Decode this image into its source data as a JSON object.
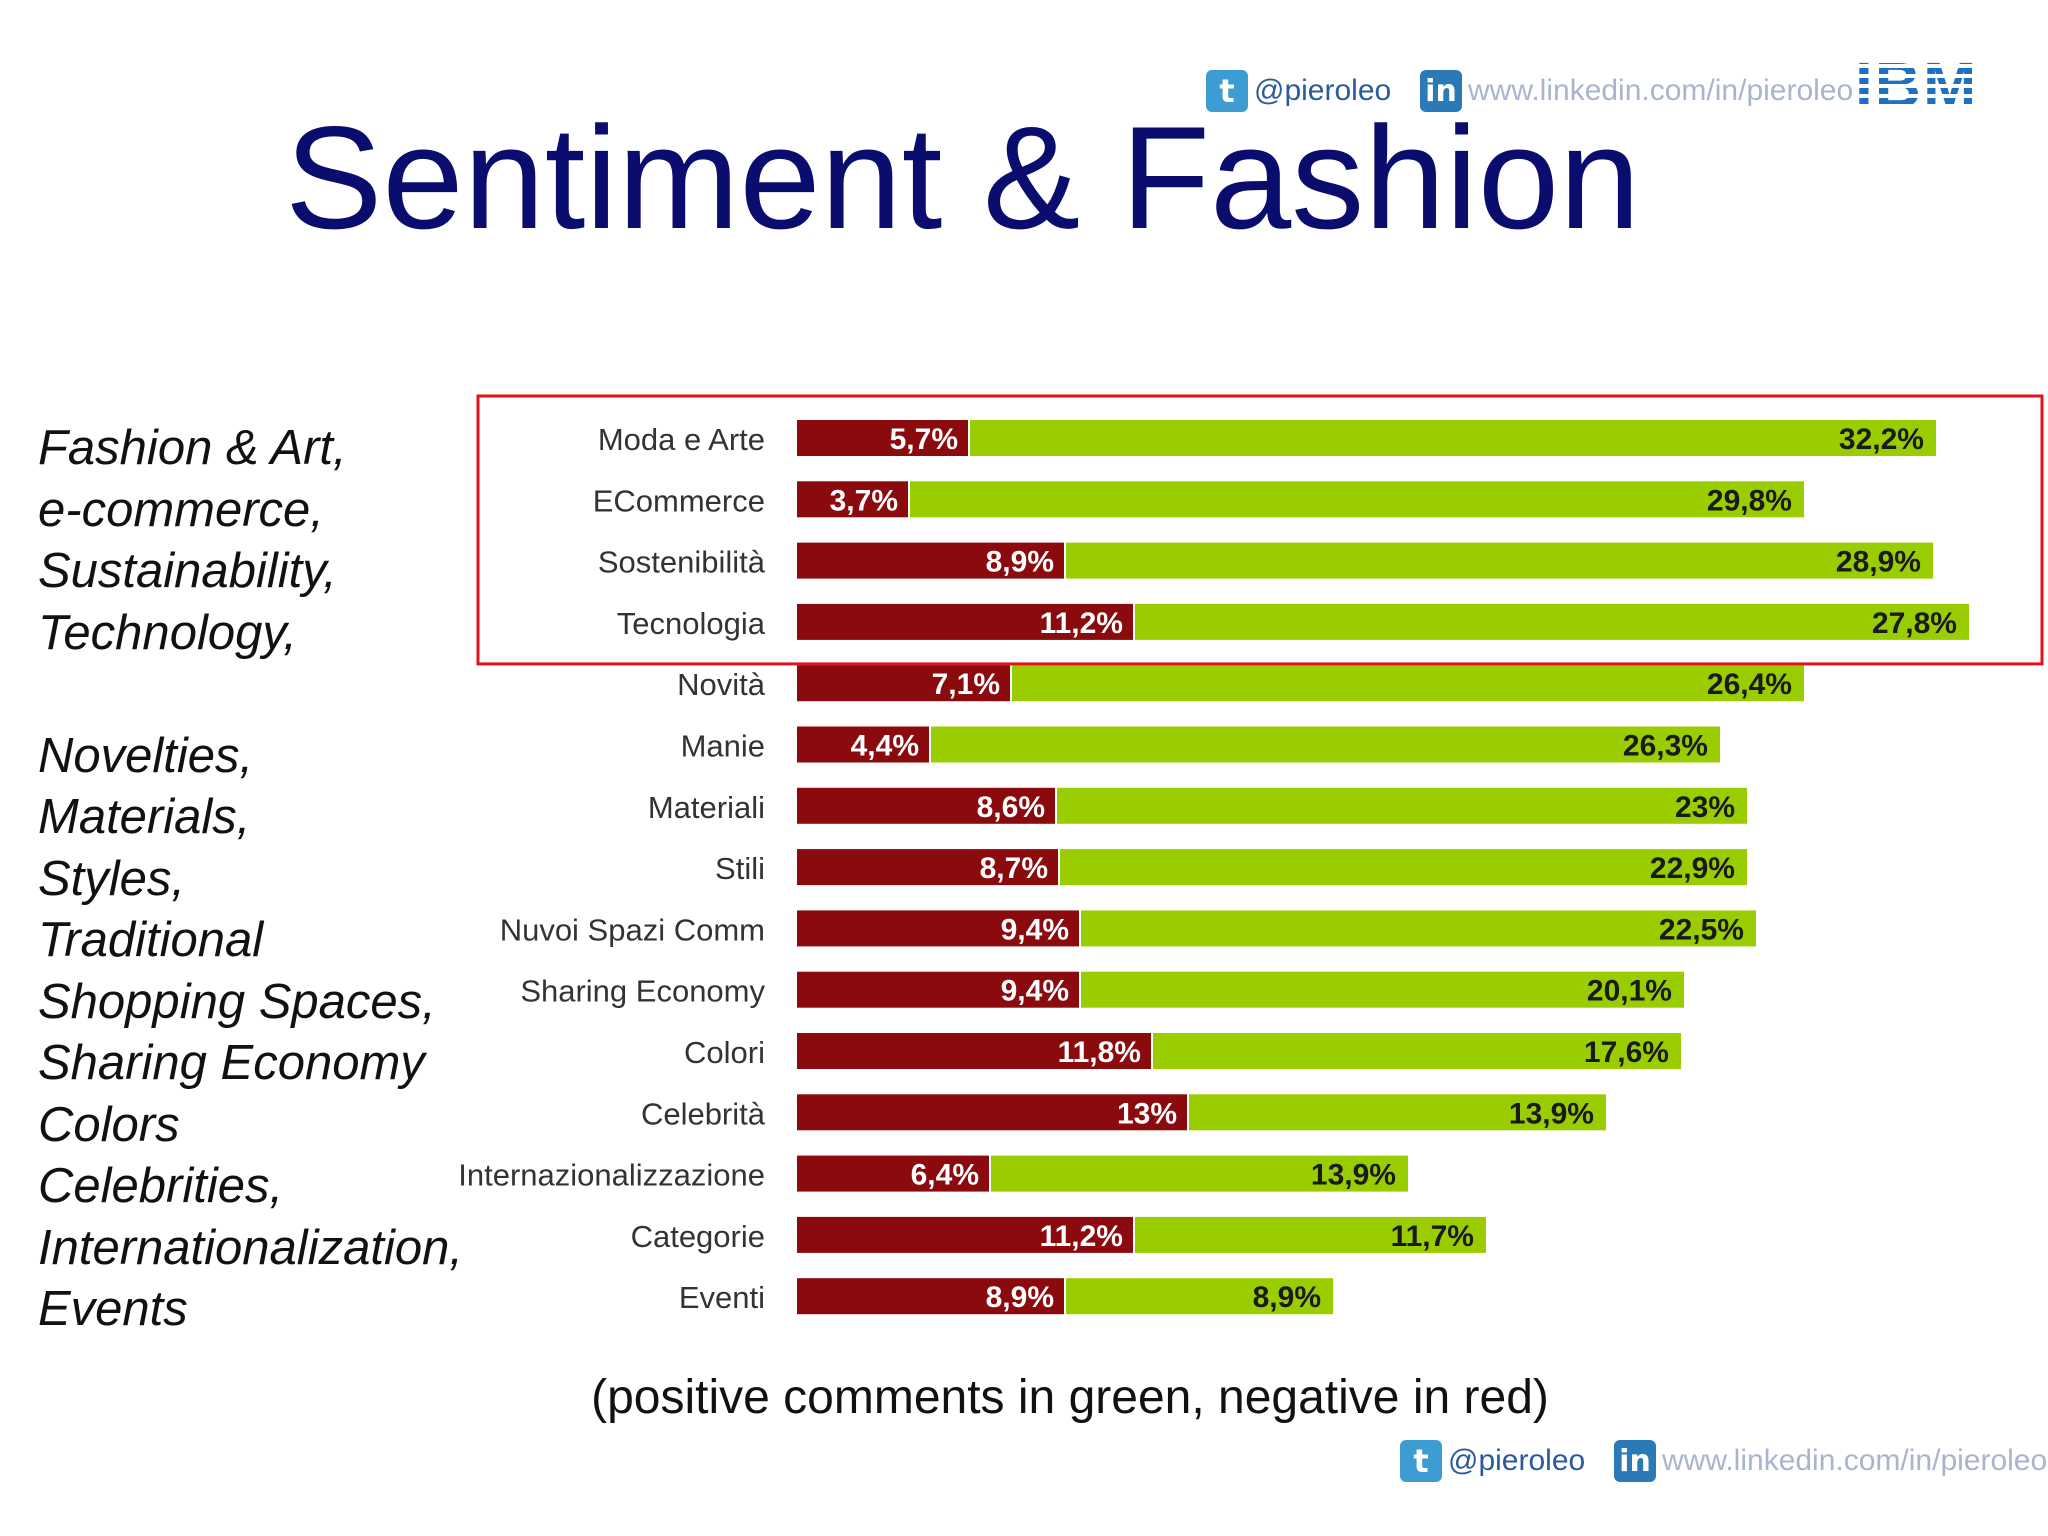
{
  "header": {
    "twitter_handle": "@pieroleo",
    "linkedin_url": "www.linkedin.com/in/pieroleo",
    "logo_text": "IBM",
    "twitter_icon": "t",
    "linkedin_icon": "in"
  },
  "title": "Sentiment & Fashion",
  "left_text": [
    "Fashion & Art,",
    "e-commerce,",
    "Sustainability,",
    "Technology,",
    "",
    "Novelties,",
    "Materials,",
    "Styles,",
    "Traditional",
    "Shopping Spaces,",
    "Sharing Economy",
    "Colors",
    "Celebrities,",
    "Internationalization,",
    "Events"
  ],
  "caption": "(positive comments in green, negative in red)",
  "footer": {
    "twitter_handle": "@pieroleo",
    "linkedin_url": "www.linkedin.com/in/pieroleo"
  },
  "colors": {
    "negative": "#8b0a0e",
    "positive": "#9acd00",
    "highlight_box": "#e0141e",
    "title": "#0a0d6e"
  },
  "chart_data": {
    "type": "bar",
    "orientation": "horizontal",
    "stacked": true,
    "categories": [
      "Moda e Arte",
      "ECommerce",
      "Sostenibilità",
      "Tecnologia",
      "Novità",
      "Manie",
      "Materiali",
      "Stili",
      "Nuvoi Spazi Comm",
      "Sharing Economy",
      "Colori",
      "Celebrità",
      "Internazionalizzazione",
      "Categorie",
      "Eventi"
    ],
    "series": [
      {
        "color": "#8b0a0e",
        "values": [
          5.7,
          3.7,
          8.9,
          11.2,
          7.1,
          4.4,
          8.6,
          8.7,
          9.4,
          9.4,
          11.8,
          13,
          6.4,
          11.2,
          8.9
        ],
        "labels": [
          "5,7%",
          "3,7%",
          "8,9%",
          "11,2%",
          "7,1%",
          "4,4%",
          "8,6%",
          "8,7%",
          "9,4%",
          "9,4%",
          "11,8%",
          "13%",
          "6,4%",
          "11,2%",
          "8,9%"
        ]
      },
      {
        "color": "#9acd00",
        "values": [
          32.2,
          29.8,
          28.9,
          27.8,
          26.4,
          26.3,
          23,
          22.9,
          22.5,
          20.1,
          17.6,
          13.9,
          13.9,
          11.7,
          8.9
        ],
        "labels": [
          "32,2%",
          "29,8%",
          "28,9%",
          "27,8%",
          "26,4%",
          "26,3%",
          "23%",
          "22,9%",
          "22,5%",
          "20,1%",
          "17,6%",
          "13,9%",
          "13,9%",
          "11,7%",
          "8,9%"
        ]
      }
    ],
    "highlighted_categories": [
      "Moda e Arte",
      "ECommerce",
      "Sostenibilità",
      "Tecnologia"
    ]
  }
}
